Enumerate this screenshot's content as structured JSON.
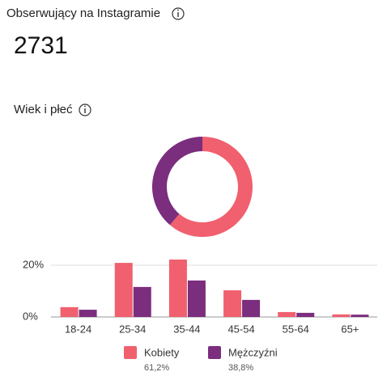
{
  "header": {
    "title": "Obserwujący na Instagramie",
    "count": 2731
  },
  "section_title": "Wiek i płeć",
  "chart_data": [
    {
      "type": "pie",
      "values": [
        61.2,
        38.8
      ],
      "value_labels": [
        "61,2%",
        "38,8%"
      ],
      "colors": [
        "#f0606e",
        "#7b2d7e"
      ]
    },
    {
      "type": "bar",
      "categories": [
        "18-24",
        "25-34",
        "35-44",
        "45-54",
        "55-64",
        "65+"
      ],
      "series": [
        {
          "name": "Kobiety",
          "color": "#f0606e",
          "values": [
            3.8,
            20.9,
            22.2,
            10.3,
            1.9,
            1.0
          ]
        },
        {
          "name": "Mężczyźni",
          "color": "#7b2d7e",
          "values": [
            2.8,
            11.6,
            14.1,
            6.6,
            1.6,
            0.9
          ]
        }
      ],
      "ylim": [
        0,
        25
      ],
      "yticks": [
        {
          "value": 0,
          "label": "0%"
        },
        {
          "value": 20,
          "label": "20%"
        }
      ],
      "grid": true
    }
  ]
}
